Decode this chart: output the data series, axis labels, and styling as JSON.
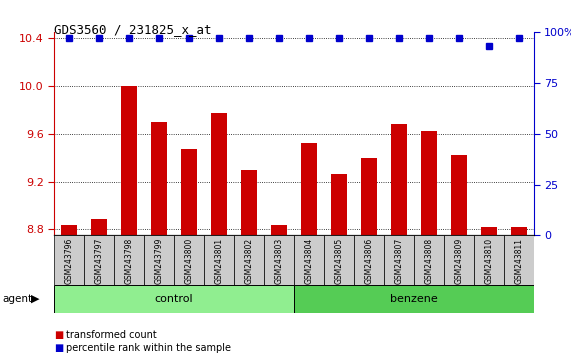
{
  "title": "GDS3560 / 231825_x_at",
  "samples": [
    "GSM243796",
    "GSM243797",
    "GSM243798",
    "GSM243799",
    "GSM243800",
    "GSM243801",
    "GSM243802",
    "GSM243803",
    "GSM243804",
    "GSM243805",
    "GSM243806",
    "GSM243807",
    "GSM243808",
    "GSM243809",
    "GSM243810",
    "GSM243811"
  ],
  "bar_values": [
    8.84,
    8.89,
    10.0,
    9.7,
    9.47,
    9.77,
    9.3,
    8.84,
    9.52,
    9.26,
    9.4,
    9.68,
    9.62,
    9.42,
    8.82,
    8.82
  ],
  "percentile_values": [
    97,
    97,
    97,
    97,
    97,
    97,
    97,
    97,
    97,
    97,
    97,
    97,
    97,
    97,
    93,
    97
  ],
  "bar_color": "#cc0000",
  "percentile_color": "#0000cc",
  "ylim_left": [
    8.75,
    10.45
  ],
  "ylim_right": [
    0,
    100
  ],
  "yticks_left": [
    8.8,
    9.2,
    9.6,
    10.0,
    10.4
  ],
  "yticks_right": [
    0,
    25,
    50,
    75,
    100
  ],
  "ytick_labels_right": [
    "0",
    "25",
    "50",
    "75",
    "100%"
  ],
  "groups": [
    {
      "label": "control",
      "start": 0,
      "end": 8,
      "color": "#90ee90"
    },
    {
      "label": "benzene",
      "start": 8,
      "end": 16,
      "color": "#55cc55"
    }
  ],
  "legend_items": [
    {
      "label": "transformed count",
      "color": "#cc0000"
    },
    {
      "label": "percentile rank within the sample",
      "color": "#0000cc"
    }
  ],
  "bar_width": 0.55,
  "base_value": 8.75,
  "bg_color": "#ffffff",
  "grid_color": "#000000",
  "tick_label_color_left": "#cc0000",
  "tick_label_color_right": "#0000cc",
  "sample_box_color": "#cccccc",
  "n_control": 8,
  "n_benzene": 8
}
